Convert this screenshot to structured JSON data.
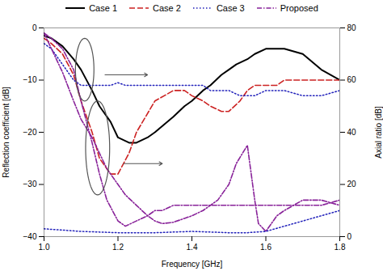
{
  "chart_data": {
    "type": "line",
    "xlabel": "Frequency [GHz]",
    "ylabel": "Reflection coefficient [dB]",
    "y2label": "Axial ratio [dB]",
    "xlim": [
      1.0,
      1.8
    ],
    "ylim": [
      -40,
      0
    ],
    "y2lim": [
      0,
      80
    ],
    "xticks": [
      {
        "value": 1.0,
        "label": "1.0"
      },
      1.2,
      1.4,
      1.6,
      1.8
    ],
    "yticks": [
      -40,
      -30,
      -20,
      -10,
      0
    ],
    "y2ticks": [
      0,
      20,
      40,
      60,
      80
    ],
    "grid": false,
    "legend": "top",
    "series": [
      {
        "name": "Case 1",
        "color": "#000000",
        "line_style": "solid",
        "axis": "y",
        "x": [
          1.0,
          1.02,
          1.05,
          1.08,
          1.1,
          1.13,
          1.15,
          1.18,
          1.2,
          1.23,
          1.25,
          1.28,
          1.3,
          1.35,
          1.38,
          1.4,
          1.43,
          1.45,
          1.48,
          1.5,
          1.52,
          1.55,
          1.57,
          1.6,
          1.62,
          1.65,
          1.7,
          1.75,
          1.8
        ],
        "values": [
          -1.5,
          -2,
          -3.5,
          -6,
          -8,
          -12,
          -15,
          -18,
          -21,
          -22,
          -22,
          -21,
          -20,
          -17,
          -15,
          -14,
          -12,
          -11,
          -9,
          -8,
          -7,
          -6,
          -5,
          -4,
          -4,
          -4,
          -5,
          -8,
          -10
        ]
      },
      {
        "name": "Case 2",
        "color": "#cc2222",
        "line_style": "dashed",
        "axis": "y",
        "x": [
          1.0,
          1.02,
          1.05,
          1.08,
          1.1,
          1.13,
          1.15,
          1.18,
          1.2,
          1.23,
          1.25,
          1.3,
          1.35,
          1.38,
          1.4,
          1.43,
          1.45,
          1.48,
          1.5,
          1.53,
          1.55,
          1.57,
          1.6,
          1.63,
          1.65,
          1.7,
          1.75,
          1.8
        ],
        "values": [
          -2,
          -3,
          -5,
          -9,
          -14,
          -20,
          -25,
          -28,
          -28,
          -24,
          -20,
          -14,
          -12,
          -12,
          -13,
          -14,
          -15,
          -16,
          -16,
          -14,
          -12,
          -11,
          -11,
          -11,
          -10,
          -10,
          -10,
          -10
        ]
      },
      {
        "name": "Case 3",
        "color": "#2222bb",
        "line_style": "dotted",
        "axis": "y",
        "x": [
          1.0,
          1.02,
          1.05,
          1.08,
          1.1,
          1.13,
          1.15,
          1.18,
          1.2,
          1.22,
          1.25,
          1.28,
          1.3,
          1.35,
          1.4,
          1.43,
          1.45,
          1.48,
          1.5,
          1.53,
          1.55,
          1.57,
          1.6,
          1.63,
          1.65,
          1.7,
          1.75,
          1.8
        ],
        "values": [
          -3,
          -4,
          -7,
          -10,
          -11,
          -11,
          -11,
          -11,
          -10.5,
          -11,
          -11,
          -11,
          -11,
          -11,
          -11,
          -11,
          -12,
          -12,
          -12,
          -13,
          -13,
          -13,
          -12,
          -12,
          -12,
          -13,
          -13,
          -12
        ]
      },
      {
        "name": "Proposed",
        "color": "#882299",
        "line_style": "dashdot",
        "axis": "y2",
        "x": [
          1.0,
          1.02,
          1.05,
          1.08,
          1.1,
          1.13,
          1.15,
          1.17,
          1.2,
          1.22,
          1.25,
          1.28,
          1.3,
          1.32,
          1.35,
          1.38,
          1.4,
          1.43,
          1.45,
          1.47,
          1.5,
          1.52,
          1.55,
          1.57,
          1.58,
          1.6,
          1.63,
          1.65,
          1.7,
          1.75,
          1.8
        ],
        "values": [
          78,
          72,
          63,
          52,
          45,
          38,
          32,
          26,
          20,
          16,
          12,
          8,
          6,
          5,
          5.5,
          7,
          8,
          10,
          12,
          14,
          20,
          28,
          35,
          14,
          5,
          2,
          8,
          10,
          14,
          14,
          12
        ]
      },
      {
        "name": "Case 3",
        "color": "#2222bb",
        "line_style": "dotted",
        "axis": "y2",
        "x": [
          1.0,
          1.05,
          1.1,
          1.2,
          1.3,
          1.4,
          1.5,
          1.55,
          1.6,
          1.65,
          1.7,
          1.75,
          1.8
        ],
        "values": [
          3,
          2.5,
          2,
          1.5,
          1.5,
          2,
          1.5,
          1.5,
          2,
          4,
          6,
          8,
          10
        ]
      },
      {
        "name": "Proposed",
        "color": "#882299",
        "line_style": "dashdot",
        "axis": "y",
        "x": [
          1.0,
          1.02,
          1.05,
          1.08,
          1.1,
          1.13,
          1.15,
          1.17,
          1.2,
          1.22,
          1.25,
          1.28,
          1.3,
          1.32,
          1.35,
          1.38,
          1.4,
          1.43,
          1.45,
          1.47,
          1.5,
          1.52,
          1.55,
          1.57,
          1.58,
          1.6,
          1.63,
          1.65,
          1.7,
          1.75,
          1.8
        ],
        "values": [
          -1,
          -2,
          -4,
          -8,
          -14,
          -22,
          -28,
          -33,
          -37,
          -38,
          -37,
          -36,
          -35,
          -35,
          -34,
          -34,
          -34,
          -34,
          -34,
          -34,
          -34,
          -34,
          -34,
          -34,
          -34,
          -34,
          -34,
          -34,
          -34,
          -34,
          -33
        ]
      }
    ],
    "annotations": [
      {
        "shape": "ellipse",
        "x": 1.11,
        "y": -8,
        "width": 0.05,
        "height": 12
      },
      {
        "shape": "ellipse",
        "x": 1.145,
        "y": -23,
        "width": 0.065,
        "height": 18
      },
      {
        "shape": "arrow",
        "x1": 1.165,
        "y1": -9,
        "x2": 1.28,
        "y2": -9
      },
      {
        "shape": "arrow",
        "x1": 1.215,
        "y1": -26,
        "x2": 1.32,
        "y2": -26
      }
    ]
  }
}
